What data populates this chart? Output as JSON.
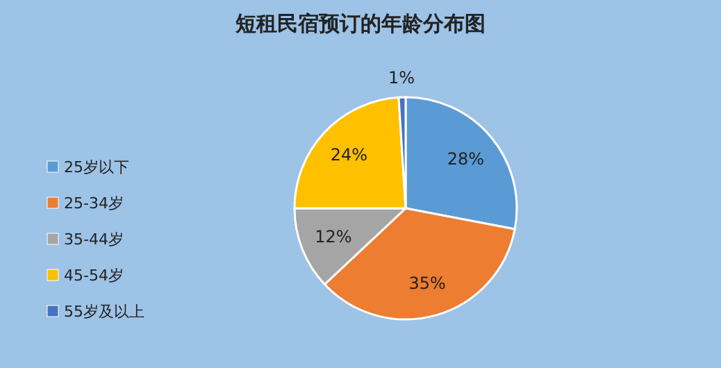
{
  "chart_data": {
    "type": "pie",
    "title": "短租民宿预订的年龄分布图",
    "categories": [
      "25岁以下",
      "25-34岁",
      "35-44岁",
      "45-54岁",
      "55岁及以上"
    ],
    "values": [
      28,
      35,
      12,
      24,
      1
    ],
    "colors": [
      "#5b9bd5",
      "#ed7d31",
      "#a5a5a5",
      "#ffc000",
      "#4472c4"
    ],
    "value_labels": [
      "28%",
      "35%",
      "12%",
      "24%",
      "1%"
    ],
    "legend": "left"
  }
}
